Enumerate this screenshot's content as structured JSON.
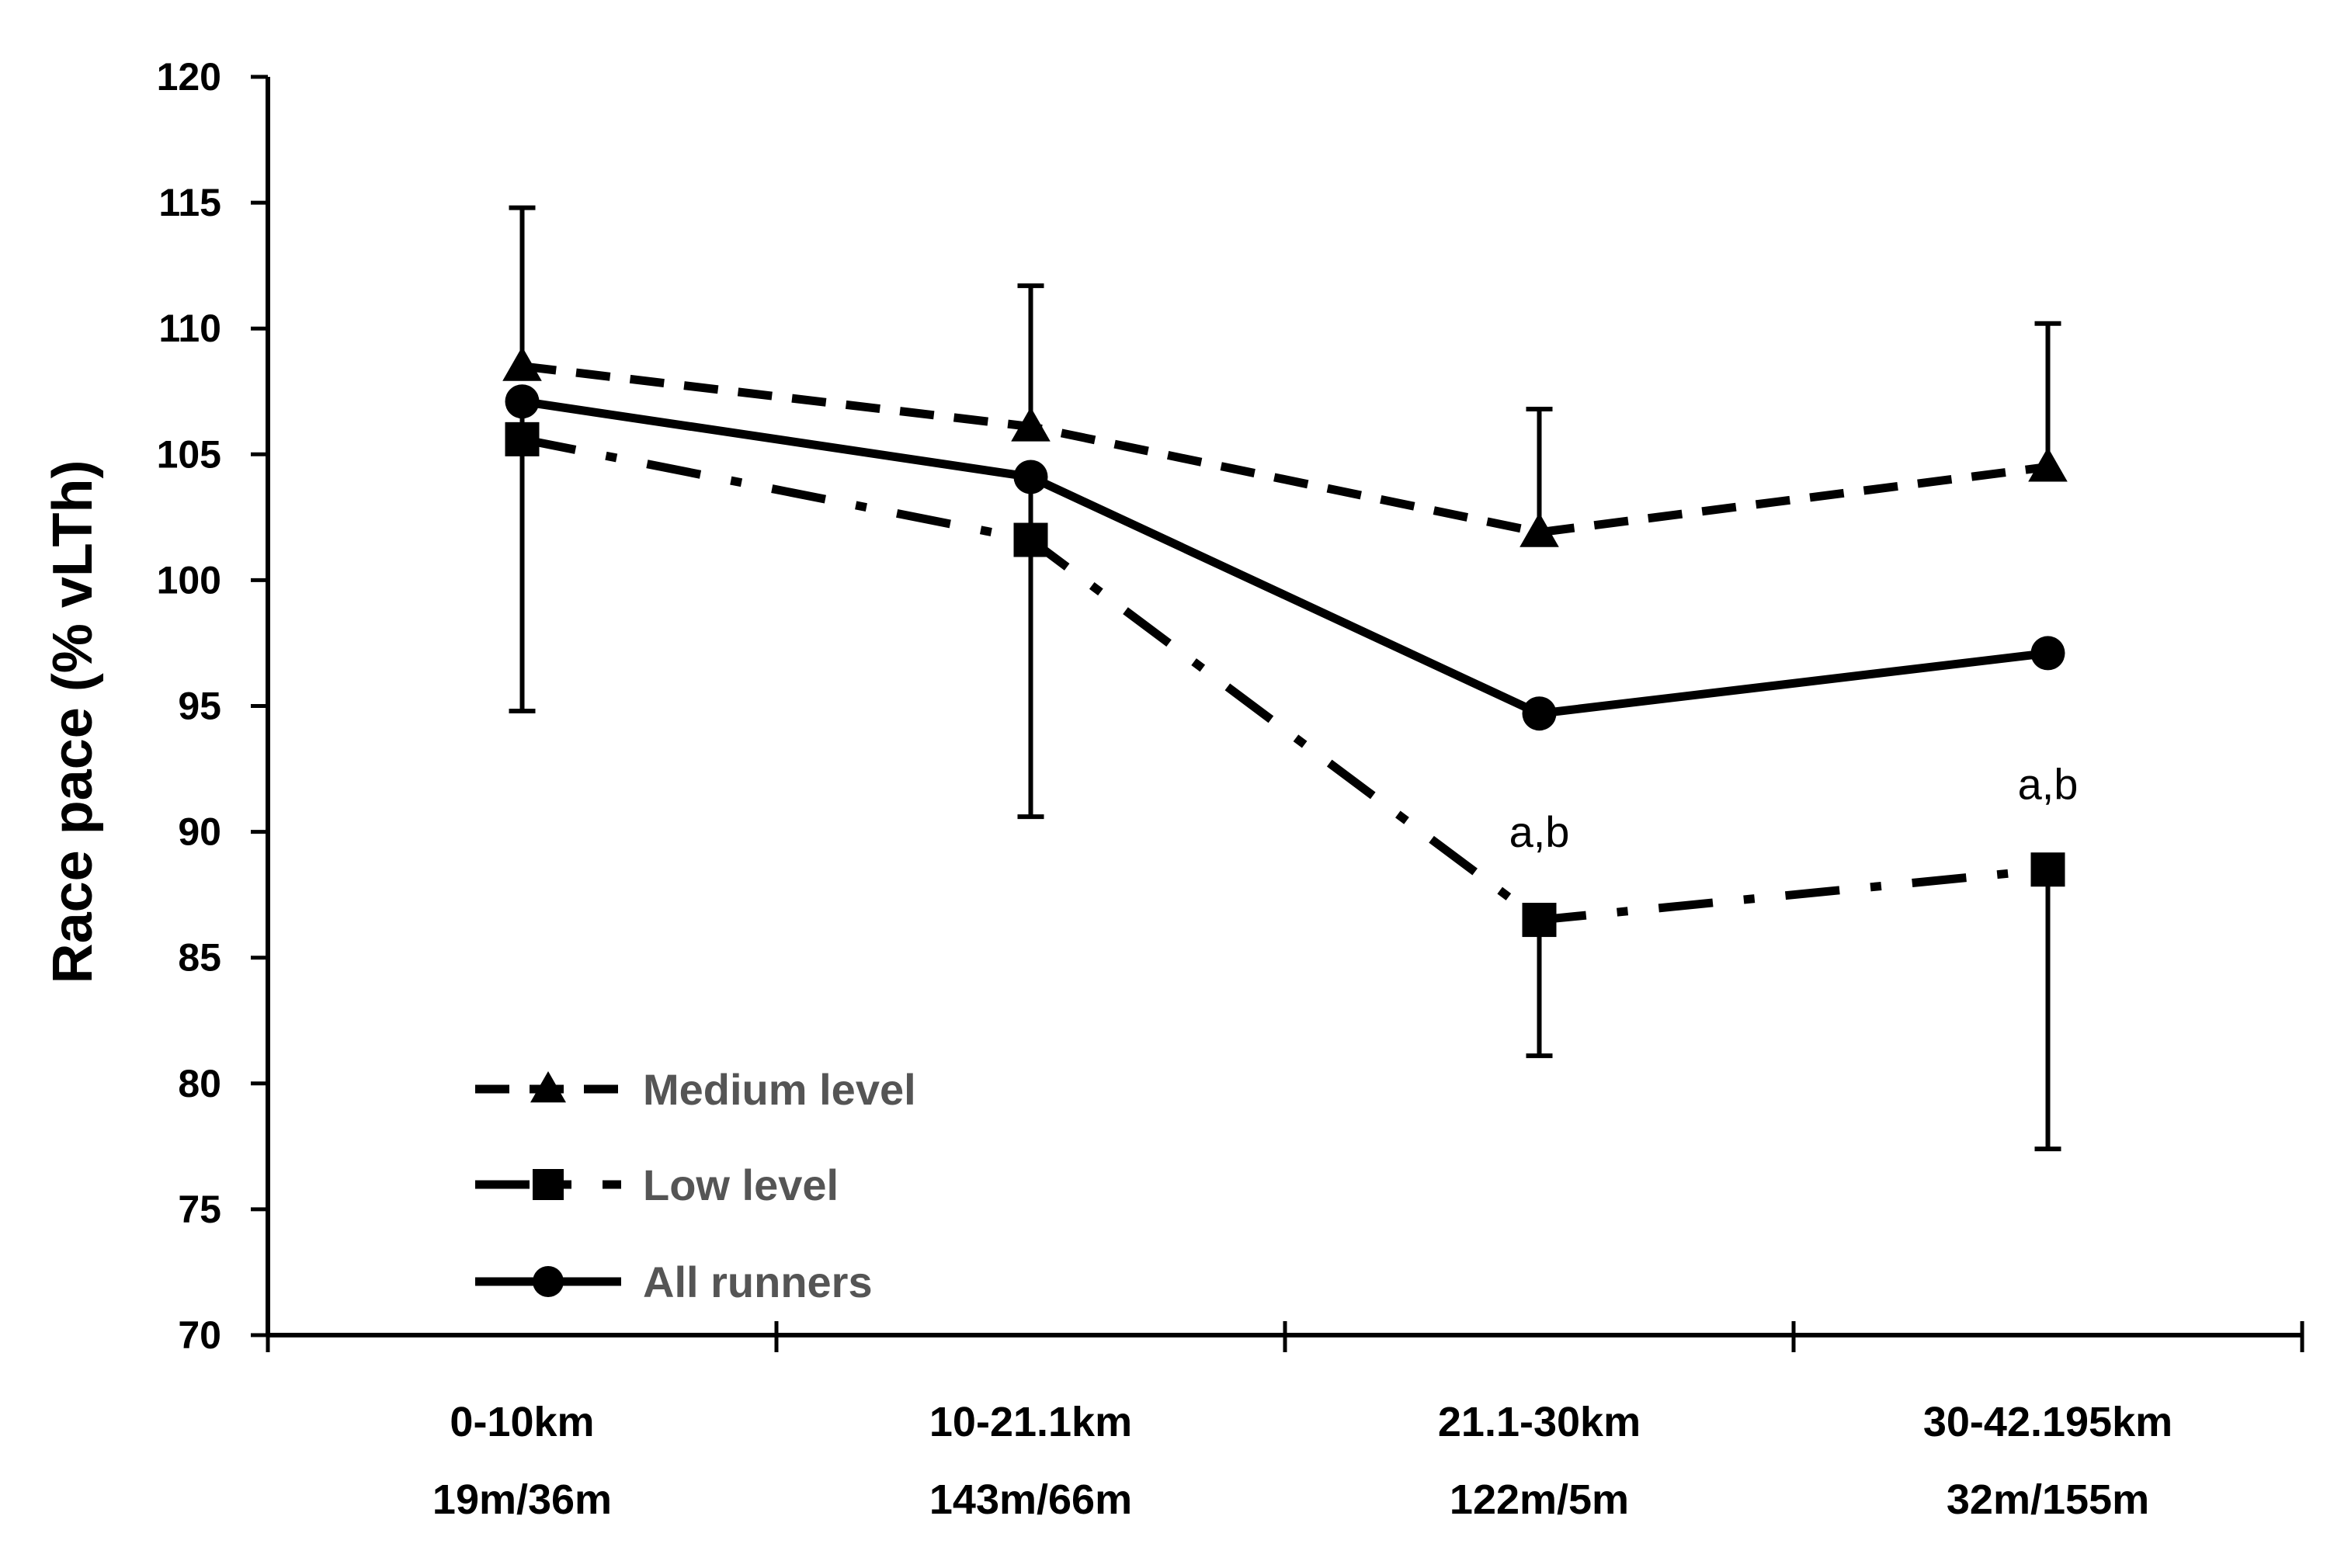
{
  "chart_data": {
    "type": "line",
    "title": "",
    "xlabel": "",
    "ylabel": "Race pace (% vLTh)",
    "ylim": [
      70,
      120
    ],
    "yticks": [
      70,
      75,
      80,
      85,
      90,
      95,
      100,
      105,
      110,
      115,
      120
    ],
    "categories": [
      {
        "line1": "0-10km",
        "line2": "19m/36m"
      },
      {
        "line1": "10-21.1km",
        "line2": "143m/66m"
      },
      {
        "line1": "21.1-30km",
        "line2": "122m/5m"
      },
      {
        "line1": "30-42.195km",
        "line2": "32m/155m"
      }
    ],
    "series": [
      {
        "name": "Medium level",
        "values": [
          108.5,
          106.1,
          101.9,
          104.5
        ],
        "error_upper": [
          114.8,
          111.7,
          106.8,
          110.2
        ],
        "line_style": "dashed",
        "marker": "triangle"
      },
      {
        "name": "Low level",
        "values": [
          105.6,
          101.6,
          86.5,
          88.5
        ],
        "error_lower": [
          null,
          null,
          81.1,
          77.4
        ],
        "line_style": "dash-dot",
        "marker": "square"
      },
      {
        "name": "All runners",
        "values": [
          107.1,
          104.1,
          94.7,
          97.1
        ],
        "error_lower": [
          94.8,
          90.6,
          null,
          null
        ],
        "line_style": "solid",
        "marker": "circle"
      }
    ],
    "annotations": [
      {
        "text": "a,b",
        "category_index": 2,
        "y": 89.4
      },
      {
        "text": "a,b",
        "category_index": 3,
        "y": 91.3
      }
    ],
    "legend_position": "bottom-left",
    "grid": false,
    "color": "#000000"
  }
}
